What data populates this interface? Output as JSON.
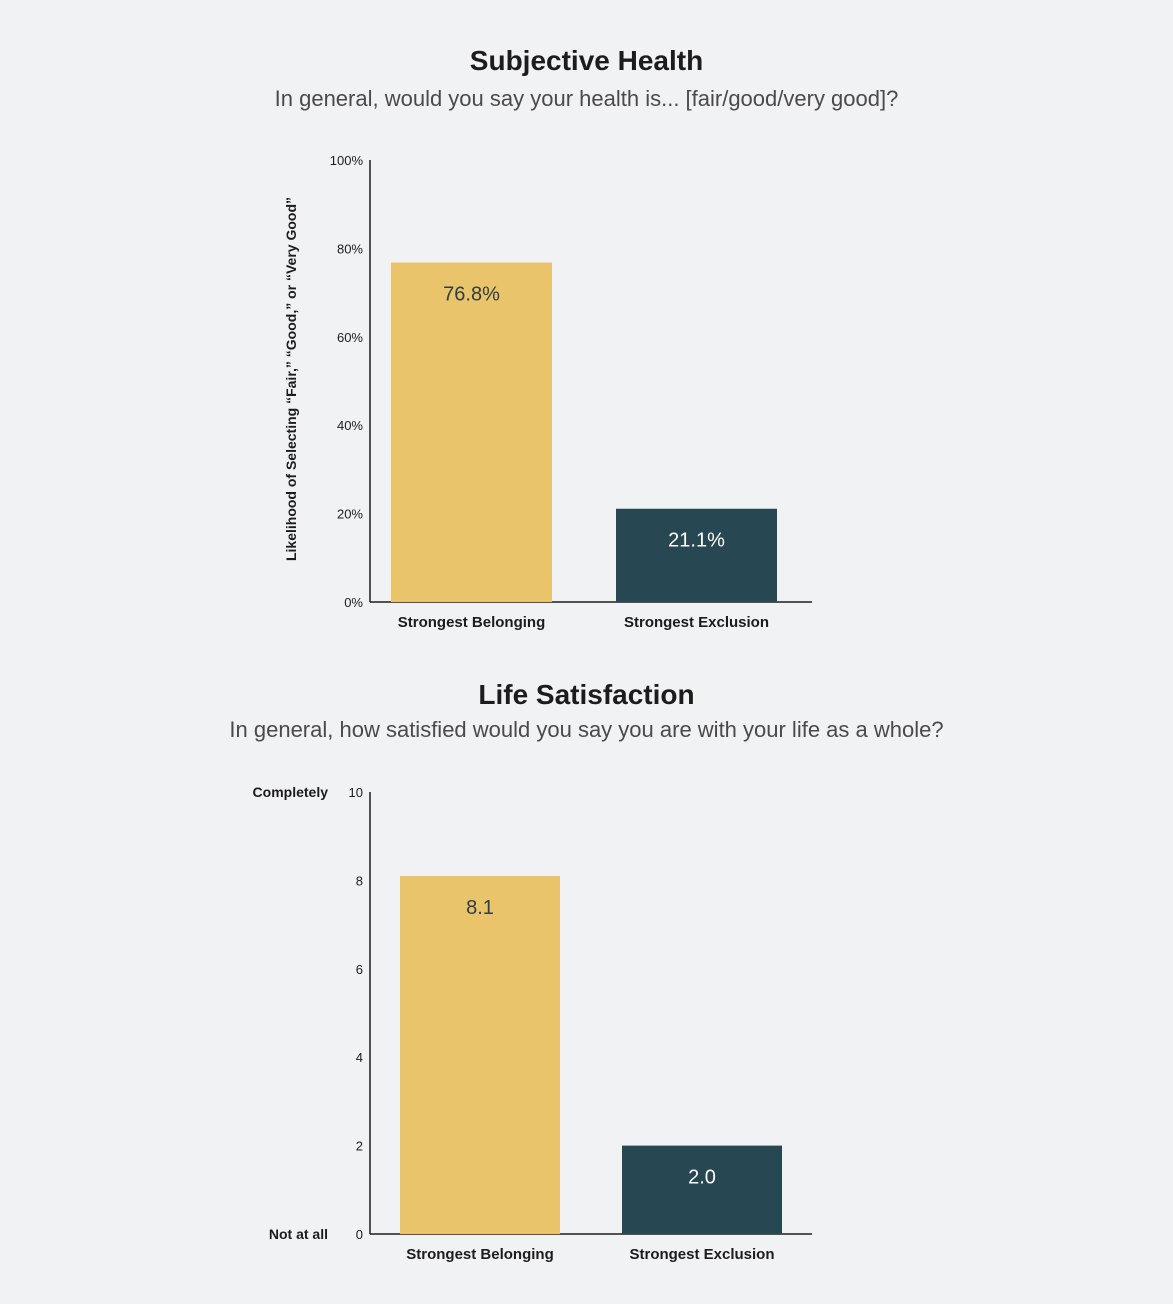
{
  "colors": {
    "background": "#f1f2f4",
    "belonging": "#eac46b",
    "exclusion": "#274753",
    "axis": "#1c1c1c",
    "label_on_light": "#2e3e44",
    "label_on_dark": "#ffffff"
  },
  "chart_data": [
    {
      "type": "bar",
      "title": "Subjective Health",
      "subtitle": "In general, would you say your health is... [fair/good/very good]?",
      "ylabel": "Likelihood of Selecting “Fair,” “Good,” or “Very Good”",
      "xlabel": "",
      "categories": [
        "Strongest Belonging",
        "Strongest Exclusion"
      ],
      "values": [
        76.8,
        21.1
      ],
      "value_labels": [
        "76.8%",
        "21.1%"
      ],
      "ylim": [
        0,
        100
      ],
      "yticks": [
        0,
        20,
        40,
        60,
        80,
        100
      ],
      "ytick_labels": [
        "0%",
        "20%",
        "40%",
        "60%",
        "80%",
        "100%"
      ],
      "ytick_side_labels": {},
      "bar_colors": [
        "#eac46b",
        "#274753"
      ],
      "label_colors": [
        "#2e3e44",
        "#ffffff"
      ],
      "grid": false,
      "legend": "none"
    },
    {
      "type": "bar",
      "title": "Life Satisfaction",
      "subtitle": "In general, how satisfied would you say you are with your life as a whole?",
      "ylabel": "",
      "xlabel": "",
      "categories": [
        "Strongest Belonging",
        "Strongest Exclusion"
      ],
      "values": [
        8.1,
        2.0
      ],
      "value_labels": [
        "8.1",
        "2.0"
      ],
      "ylim": [
        0,
        10
      ],
      "yticks": [
        0,
        2,
        4,
        6,
        8,
        10
      ],
      "ytick_labels": [
        "0",
        "2",
        "4",
        "6",
        "8",
        "10"
      ],
      "ytick_side_labels": {
        "0": "Not at all",
        "10": "Completely"
      },
      "bar_colors": [
        "#eac46b",
        "#274753"
      ],
      "label_colors": [
        "#2e3e44",
        "#ffffff"
      ],
      "grid": false,
      "legend": "none"
    }
  ]
}
